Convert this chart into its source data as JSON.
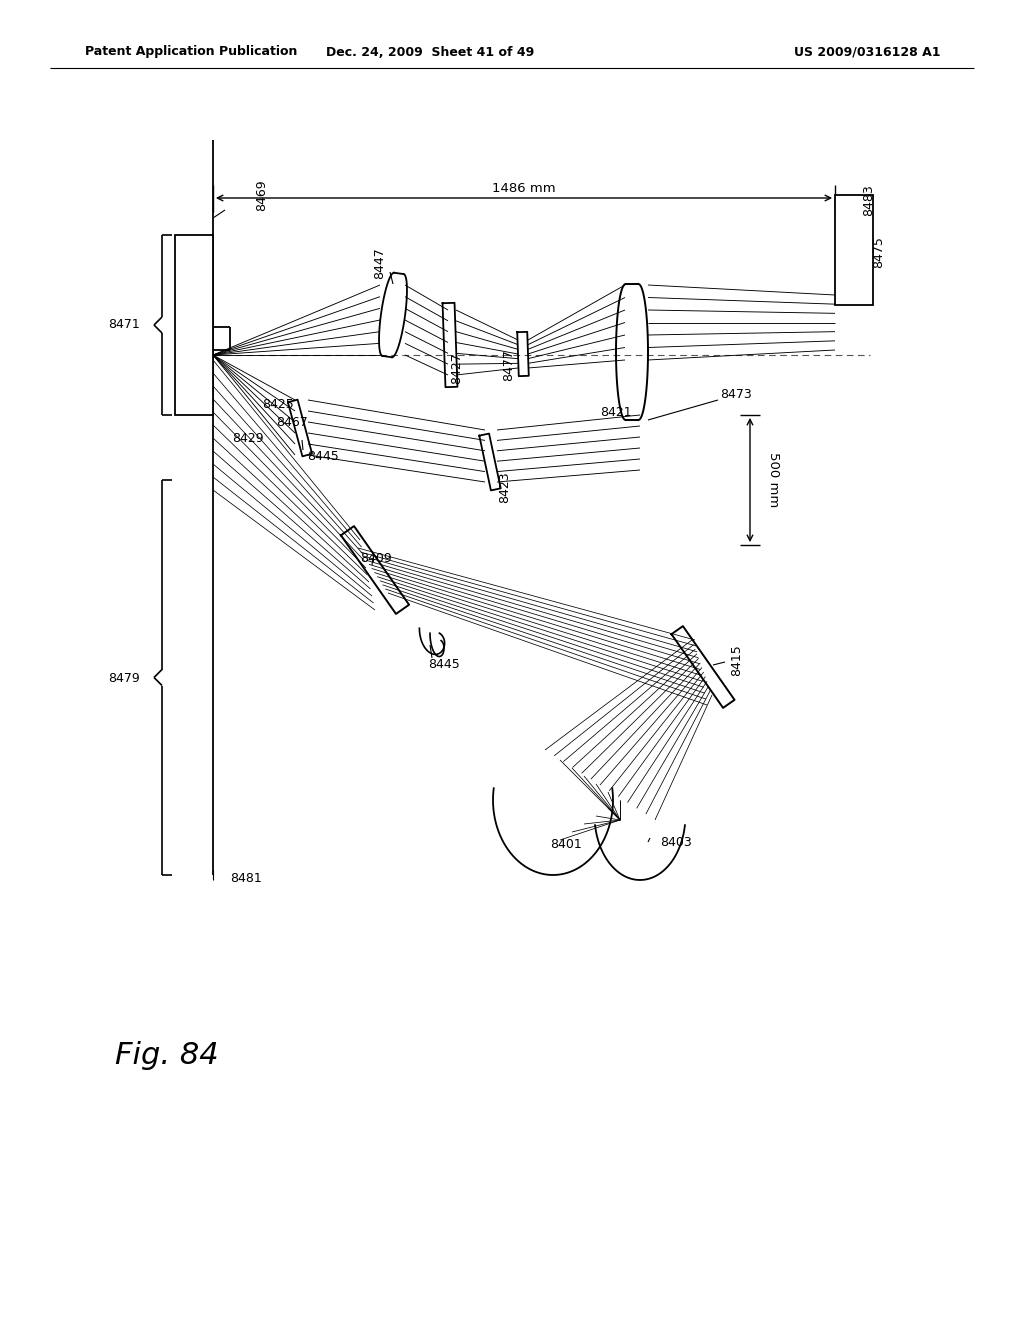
{
  "bg_color": "#ffffff",
  "header_left": "Patent Application Publication",
  "header_center": "Dec. 24, 2009  Sheet 41 of 49",
  "header_right": "US 2009/0316128 A1",
  "fig_label": "Fig. 84"
}
